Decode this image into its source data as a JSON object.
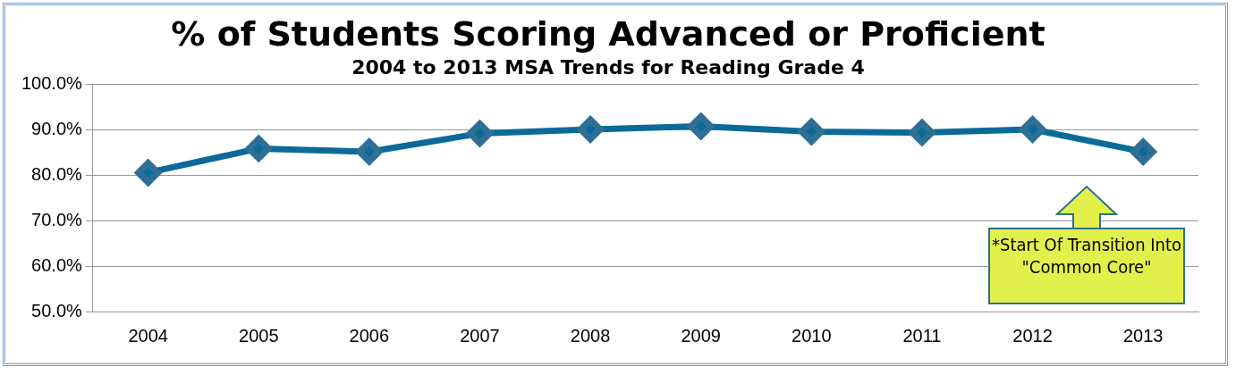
{
  "chart_data": {
    "type": "line",
    "title": "% of Students Scoring Advanced or Proficient",
    "subtitle": "2004 to 2013 MSA Trends for Reading Grade 4",
    "categories": [
      "2004",
      "2005",
      "2006",
      "2007",
      "2008",
      "2009",
      "2010",
      "2011",
      "2012",
      "2013"
    ],
    "series": [
      {
        "color": "#0b6a98",
        "values": [
          80.5,
          85.8,
          85.1,
          89.1,
          90.0,
          90.7,
          89.5,
          89.3,
          90.0,
          85.1
        ]
      }
    ],
    "ylim": [
      50,
      100
    ],
    "yticks": [
      {
        "value": 50,
        "label": "50.0%"
      },
      {
        "value": 60,
        "label": "60.0%"
      },
      {
        "value": 70,
        "label": "70.0%"
      },
      {
        "value": 80,
        "label": "80.0%"
      },
      {
        "value": 90,
        "label": "90.0%"
      },
      {
        "value": 100,
        "label": "100.0%"
      }
    ],
    "grid": "y",
    "legend": false,
    "marker": "diamond",
    "line_style": "solid",
    "annotations": [
      "*Start Of Transition Into \"Common Core\""
    ]
  }
}
